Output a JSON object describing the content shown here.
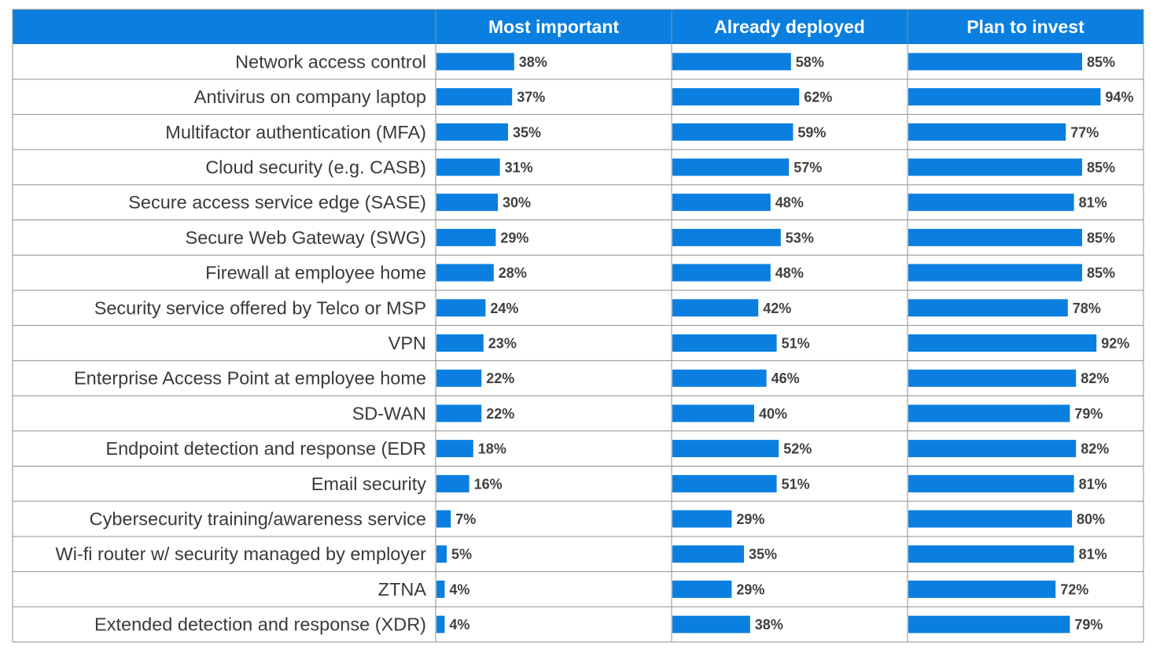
{
  "colors": {
    "header_bg": "#0a7fe0",
    "bar": "#0a7fe0",
    "grid": "#8f8f8f",
    "header_text": "#ffffff",
    "label_text": "#3a3a3a",
    "value_text": "#404040"
  },
  "chart_data": {
    "type": "bar",
    "orientation": "horizontal",
    "value_format": "percent",
    "xlim": [
      0,
      100
    ],
    "categories": [
      "Network access control",
      "Antivirus on company laptop",
      "Multifactor authentication (MFA)",
      "Cloud security (e.g. CASB)",
      "Secure access service edge (SASE)",
      "Secure Web Gateway (SWG)",
      "Firewall at employee home",
      "Security service offered by Telco or MSP",
      "VPN",
      "Enterprise Access Point at employee home",
      "SD-WAN",
      "Endpoint detection and response (EDR",
      "Email security",
      "Cybersecurity training/awareness service",
      "Wi-fi router w/ security managed by employer",
      "ZTNA",
      "Extended detection and response (XDR)"
    ],
    "series": [
      {
        "name": "Most important",
        "values": [
          38,
          37,
          35,
          31,
          30,
          29,
          28,
          24,
          23,
          22,
          22,
          18,
          16,
          7,
          5,
          4,
          4
        ]
      },
      {
        "name": "Already deployed",
        "values": [
          58,
          62,
          59,
          57,
          48,
          53,
          48,
          42,
          51,
          46,
          40,
          52,
          51,
          29,
          35,
          29,
          38
        ]
      },
      {
        "name": "Plan to invest",
        "values": [
          85,
          94,
          77,
          85,
          81,
          85,
          85,
          78,
          92,
          82,
          79,
          82,
          81,
          80,
          81,
          72,
          79
        ]
      }
    ]
  }
}
